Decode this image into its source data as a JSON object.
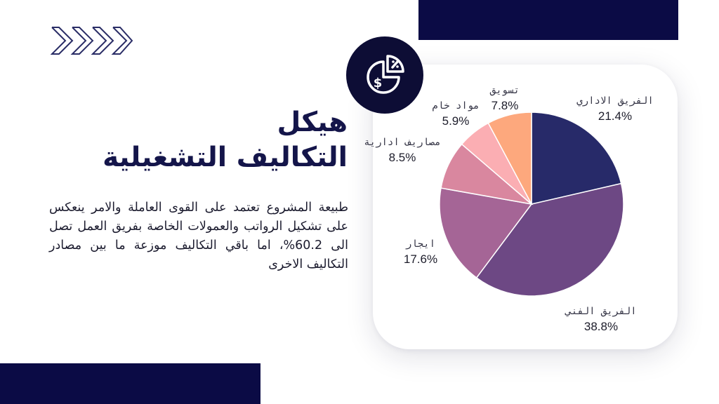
{
  "heading": {
    "line1": "هيكل",
    "line2": "التكاليف التشغيلية"
  },
  "body": "طبيعة المشروع تعتمد على القوى العاملة والامر ينعكس على تشكيل الرواتب والعمولات الخاصة بفريق العمل تصل الى 60.2%، اما باقي التكاليف موزعة ما بين مصادر التكاليف الاخرى",
  "icons": {
    "decor": "chevrons-right-icon",
    "badge": "pie-chart-dollar-icon"
  },
  "colors": {
    "navy": "#0b0b45",
    "heading": "#14154a"
  },
  "chart_data": {
    "type": "pie",
    "title": "",
    "slices": [
      {
        "label": "الفريق الاداري",
        "value": 21.4,
        "display": "21.4%",
        "color": "#272a69"
      },
      {
        "label": "الفريق الفني",
        "value": 38.8,
        "display": "38.8%",
        "color": "#6d4884"
      },
      {
        "label": "ايجار",
        "value": 17.6,
        "display": "17.6%",
        "color": "#a56596"
      },
      {
        "label": "مصاريف ادارية",
        "value": 8.5,
        "display": "8.5%",
        "color": "#d9879f"
      },
      {
        "label": "مواد خام",
        "value": 5.9,
        "display": "5.9%",
        "color": "#fbaeb3"
      },
      {
        "label": "تسويق",
        "value": 7.8,
        "display": "7.8%",
        "color": "#fda87d"
      }
    ]
  }
}
